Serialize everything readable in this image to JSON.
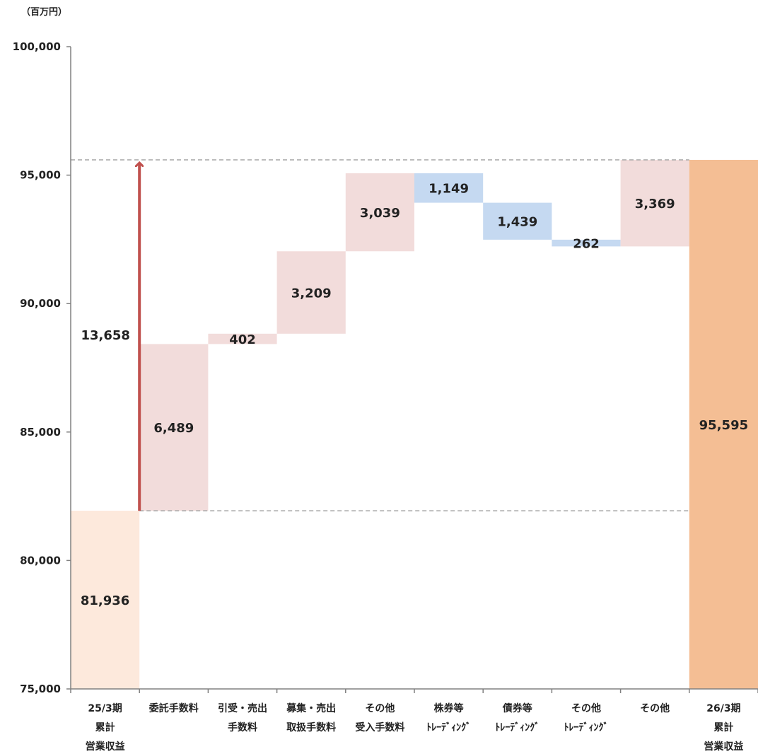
{
  "chart_data": {
    "type": "waterfall",
    "unit_label": "（百万円）",
    "ylim": [
      75000,
      100000
    ],
    "y_ticks": [
      75000,
      80000,
      85000,
      90000,
      95000,
      100000
    ],
    "y_tick_labels": [
      "75,000",
      "80,000",
      "85,000",
      "90,000",
      "95,000",
      "100,000"
    ],
    "bars": [
      {
        "lines": [
          "25/3期",
          "累計",
          "営業収益"
        ],
        "kind": "total",
        "value": 81936,
        "label": "81,936",
        "color": "#fde9dc"
      },
      {
        "lines": [
          "委託手数料"
        ],
        "kind": "delta",
        "value": 6489,
        "label": "6,489",
        "color": "#f2dcdb"
      },
      {
        "lines": [
          "引受・売出",
          "手数料"
        ],
        "kind": "delta",
        "value": 402,
        "label": "402",
        "color": "#f2dcdb"
      },
      {
        "lines": [
          "募集・売出",
          "取扱手数料"
        ],
        "kind": "delta",
        "value": 3209,
        "label": "3,209",
        "color": "#f2dcdb"
      },
      {
        "lines": [
          "その他",
          "受入手数料"
        ],
        "kind": "delta",
        "value": 3039,
        "label": "3,039",
        "color": "#f2dcdb"
      },
      {
        "lines": [
          "株券等",
          "ﾄﾚｰﾃﾞｨﾝｸﾞ"
        ],
        "kind": "delta",
        "value": -1149,
        "label": "1,149",
        "color": "#c5d9f1"
      },
      {
        "lines": [
          "債券等",
          "ﾄﾚｰﾃﾞｨﾝｸﾞ"
        ],
        "kind": "delta",
        "value": -1439,
        "label": "1,439",
        "color": "#c5d9f1"
      },
      {
        "lines": [
          "その他",
          "ﾄﾚｰﾃﾞｨﾝｸﾞ"
        ],
        "kind": "delta",
        "value": -262,
        "label": "262",
        "color": "#c5d9f1"
      },
      {
        "lines": [
          "その他"
        ],
        "kind": "delta",
        "value": 3369,
        "label": "3,369",
        "color": "#f2dcdb"
      },
      {
        "lines": [
          "26/3期",
          "累計",
          "営業収益"
        ],
        "kind": "total",
        "value": 95595,
        "label": "95,595",
        "color": "#f4be94"
      }
    ],
    "change": {
      "from": 81936,
      "to": 95595,
      "label": "13,658",
      "color": "#c0504d"
    }
  }
}
